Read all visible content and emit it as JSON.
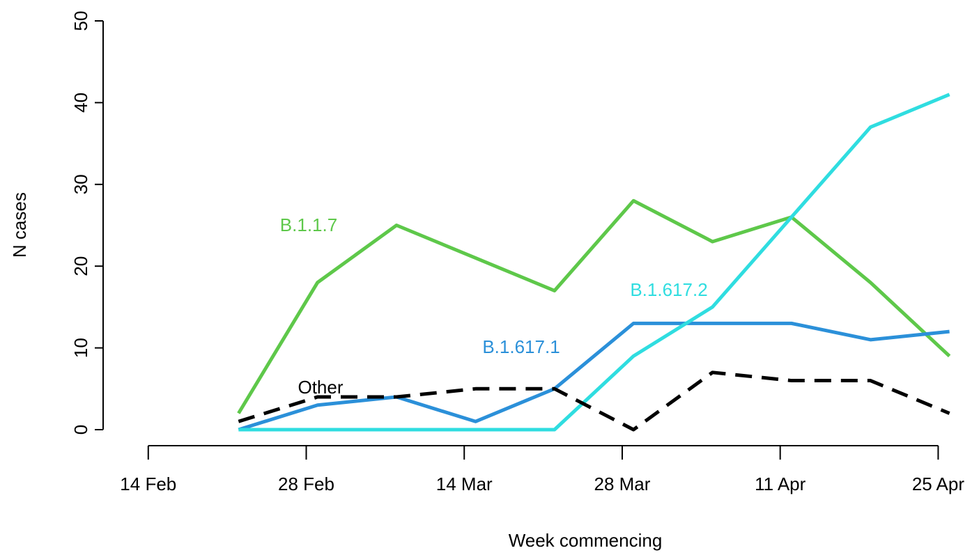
{
  "chart_data": {
    "type": "line",
    "xlabel": "Week commencing",
    "ylabel": "N cases",
    "x": [
      "22 Feb",
      "1 Mar",
      "8 Mar",
      "15 Mar",
      "22 Mar",
      "29 Mar",
      "5 Apr",
      "12 Apr",
      "19 Apr",
      "26 Apr"
    ],
    "series": [
      {
        "name": "B.1.1.7",
        "color": "#5ec84a",
        "values": [
          2,
          18,
          25,
          21,
          17,
          28,
          23,
          26,
          18,
          9
        ]
      },
      {
        "name": "B.1.617.1",
        "color": "#2b90d9",
        "values": [
          0,
          3,
          4,
          1,
          5,
          13,
          13,
          13,
          11,
          12
        ]
      },
      {
        "name": "B.1.617.2",
        "color": "#2fdde0",
        "values": [
          0,
          0,
          0,
          0,
          0,
          9,
          15,
          26,
          37,
          41
        ]
      },
      {
        "name": "Other",
        "color": "#000000",
        "dashed": true,
        "values": [
          1,
          4,
          4,
          5,
          5,
          0,
          7,
          6,
          6,
          2
        ]
      }
    ],
    "xlim": [
      "10 Feb",
      "28 Apr"
    ],
    "xticks": [
      "14 Feb",
      "28 Feb",
      "14 Mar",
      "28 Mar",
      "11 Apr",
      "25 Apr"
    ],
    "ylim": [
      0,
      50
    ],
    "yticks": [
      0,
      10,
      20,
      30,
      40,
      50
    ],
    "grid": false
  }
}
